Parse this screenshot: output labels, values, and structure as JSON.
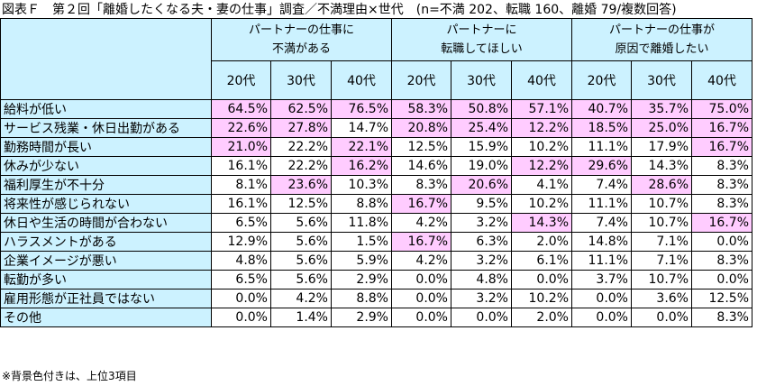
{
  "title": "図表Ｆ　第２回「離婚したくなる夫・妻の仕事」調査／不満理由×世代　(n=不満 202、転職 160、離婚 79/複数回答)",
  "groups": [
    {
      "line1": "パートナーの仕事に",
      "line2": "不満がある"
    },
    {
      "line1": "パートナーに",
      "line2": "転職してほしい"
    },
    {
      "line1": "パートナーの仕事が",
      "line2": "原因で離婚したい"
    }
  ],
  "ages": [
    "20代",
    "30代",
    "40代"
  ],
  "rows": [
    {
      "label": "給料が低い",
      "values": [
        "64.5%",
        "62.5%",
        "76.5%",
        "58.3%",
        "50.8%",
        "57.1%",
        "40.7%",
        "35.7%",
        "75.0%"
      ],
      "highlight": [
        1,
        1,
        1,
        1,
        1,
        1,
        1,
        1,
        1
      ]
    },
    {
      "label": "サービス残業・休日出勤がある",
      "values": [
        "22.6%",
        "27.8%",
        "14.7%",
        "20.8%",
        "25.4%",
        "12.2%",
        "18.5%",
        "25.0%",
        "16.7%"
      ],
      "highlight": [
        1,
        1,
        0,
        1,
        1,
        1,
        1,
        1,
        1
      ]
    },
    {
      "label": "勤務時間が長い",
      "values": [
        "21.0%",
        "22.2%",
        "22.1%",
        "12.5%",
        "15.9%",
        "10.2%",
        "11.1%",
        "17.9%",
        "16.7%"
      ],
      "highlight": [
        1,
        0,
        1,
        0,
        0,
        0,
        0,
        0,
        1
      ]
    },
    {
      "label": "休みが少ない",
      "values": [
        "16.1%",
        "22.2%",
        "16.2%",
        "14.6%",
        "19.0%",
        "12.2%",
        "29.6%",
        "14.3%",
        "8.3%"
      ],
      "highlight": [
        0,
        0,
        1,
        0,
        0,
        1,
        1,
        0,
        0
      ]
    },
    {
      "label": "福利厚生が不十分",
      "values": [
        "8.1%",
        "23.6%",
        "10.3%",
        "8.3%",
        "20.6%",
        "4.1%",
        "7.4%",
        "28.6%",
        "8.3%"
      ],
      "highlight": [
        0,
        1,
        0,
        0,
        1,
        0,
        0,
        1,
        0
      ]
    },
    {
      "label": "将来性が感じられない",
      "values": [
        "16.1%",
        "12.5%",
        "8.8%",
        "16.7%",
        "9.5%",
        "10.2%",
        "11.1%",
        "10.7%",
        "8.3%"
      ],
      "highlight": [
        0,
        0,
        0,
        1,
        0,
        0,
        0,
        0,
        0
      ]
    },
    {
      "label": "休日や生活の時間が合わない",
      "values": [
        "6.5%",
        "5.6%",
        "11.8%",
        "4.2%",
        "3.2%",
        "14.3%",
        "7.4%",
        "10.7%",
        "16.7%"
      ],
      "highlight": [
        0,
        0,
        0,
        0,
        0,
        1,
        0,
        0,
        1
      ]
    },
    {
      "label": "ハラスメントがある",
      "values": [
        "12.9%",
        "5.6%",
        "1.5%",
        "16.7%",
        "6.3%",
        "2.0%",
        "14.8%",
        "7.1%",
        "0.0%"
      ],
      "highlight": [
        0,
        0,
        0,
        1,
        0,
        0,
        0,
        0,
        0
      ]
    },
    {
      "label": "企業イメージが悪い",
      "values": [
        "4.8%",
        "5.6%",
        "5.9%",
        "4.2%",
        "3.2%",
        "6.1%",
        "11.1%",
        "7.1%",
        "8.3%"
      ],
      "highlight": [
        0,
        0,
        0,
        0,
        0,
        0,
        0,
        0,
        0
      ]
    },
    {
      "label": "転勤が多い",
      "values": [
        "6.5%",
        "5.6%",
        "2.9%",
        "0.0%",
        "4.8%",
        "0.0%",
        "3.7%",
        "10.7%",
        "0.0%"
      ],
      "highlight": [
        0,
        0,
        0,
        0,
        0,
        0,
        0,
        0,
        0
      ]
    },
    {
      "label": "雇用形態が正社員ではない",
      "values": [
        "0.0%",
        "4.2%",
        "8.8%",
        "0.0%",
        "3.2%",
        "10.2%",
        "0.0%",
        "3.6%",
        "12.5%"
      ],
      "highlight": [
        0,
        0,
        0,
        0,
        0,
        0,
        0,
        0,
        0
      ]
    },
    {
      "label": "その他",
      "values": [
        "0.0%",
        "1.4%",
        "2.9%",
        "0.0%",
        "0.0%",
        "2.0%",
        "0.0%",
        "0.0%",
        "8.3%"
      ],
      "highlight": [
        0,
        0,
        0,
        0,
        0,
        0,
        0,
        0,
        0
      ]
    }
  ],
  "footnote": "※背景色付きは、上位3項目",
  "colors": {
    "header_bg": "#ccf2ff",
    "highlight_bg": "#ffccff",
    "cell_bg": "#ffffff"
  }
}
